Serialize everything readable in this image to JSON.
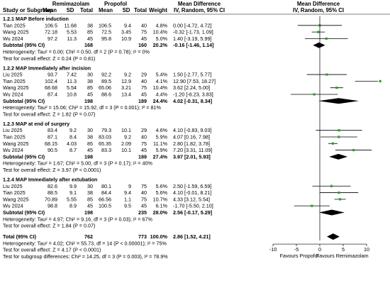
{
  "header": {
    "study_col": "Study or Subgroup",
    "group1": "Remimazolam",
    "group2": "Propofol",
    "mean": "Mean",
    "sd": "SD",
    "total": "Total",
    "weight": "Weight",
    "md_col": "Mean Difference",
    "md_method": "IV, Random, 95% CI",
    "plot_col": "Mean Difference",
    "plot_method": "IV, Random, 95% CI"
  },
  "chart_data": {
    "type": "forest",
    "x_ticks": [
      "-10",
      "-5",
      "0",
      "5",
      "10"
    ],
    "xlim": [
      -12.5,
      12.5
    ],
    "favours_left": "Favours Propofol",
    "favours_right": "Favours Remimazolam",
    "colors": {
      "point": "#2e9e2e",
      "line": "#000000",
      "diamond": "#000000"
    },
    "subgroups": [
      {
        "title": "1.2.1 MAP Before induction",
        "studies": [
          {
            "study": "Tian 2025",
            "m1": "106.5",
            "sd1": "11.68",
            "n1": "38",
            "m2": "106.5",
            "sd2": "9.4",
            "n2": "40",
            "weight": "4.8%",
            "ci_text": "0.00 [-4.72, 4.72]",
            "md": 0.0,
            "lo": -4.72,
            "hi": 4.72
          },
          {
            "study": "Wang 2025",
            "m1": "72.18",
            "sd1": "5.53",
            "n1": "85",
            "m2": "72.5",
            "sd2": "3.45",
            "n2": "75",
            "weight": "10.4%",
            "ci_text": "-0.32 [-1.73, 1.09]",
            "md": -0.32,
            "lo": -1.73,
            "hi": 1.09
          },
          {
            "study": "Wu 2024",
            "m1": "97.2",
            "sd1": "11.3",
            "n1": "45",
            "m2": "95.8",
            "sd2": "10.9",
            "n2": "45",
            "weight": "5.0%",
            "ci_text": "1.40 [-3.19, 5.99]",
            "md": 1.4,
            "lo": -3.19,
            "hi": 5.99
          }
        ],
        "subtotal": {
          "label": "Subtotal (95% CI)",
          "n1": "168",
          "n2": "160",
          "weight": "20.2%",
          "ci_text": "-0.16 [-1.46, 1.14]",
          "md": -0.16,
          "lo": -1.46,
          "hi": 1.14
        },
        "heterogeneity": "Heterogeneity: Tau² = 0.00; Chi² = 0.50, df = 2 (P = 0.78); I² = 0%",
        "overall": "Test for overall effect: Z = 0.24 (P = 0.81)"
      },
      {
        "title": "1.2.2 MAP Immediately after incision",
        "studies": [
          {
            "study": "Liu 2025",
            "m1": "93.7",
            "sd1": "7.42",
            "n1": "30",
            "m2": "92.2",
            "sd2": "9.2",
            "n2": "29",
            "weight": "5.4%",
            "ci_text": "1.50 [-2.77, 5.77]",
            "md": 1.5,
            "lo": -2.77,
            "hi": 5.77
          },
          {
            "study": "Tian 2025",
            "m1": "102.4",
            "sd1": "11.3",
            "n1": "38",
            "m2": "89.5",
            "sd2": "12.9",
            "n2": "40",
            "weight": "4.1%",
            "ci_text": "12.90 [7.53, 18.27]",
            "md": 12.9,
            "lo": 7.53,
            "hi": 18.27
          },
          {
            "study": "Wang 2025",
            "m1": "68.68",
            "sd1": "5.54",
            "n1": "85",
            "m2": "65.06",
            "sd2": "3.21",
            "n2": "75",
            "weight": "10.4%",
            "ci_text": "3.62 [2.24, 5.00]",
            "md": 3.62,
            "lo": 2.24,
            "hi": 5.0
          },
          {
            "study": "Wu 2024",
            "m1": "87.4",
            "sd1": "10.8",
            "n1": "45",
            "m2": "88.6",
            "sd2": "13.4",
            "n2": "45",
            "weight": "4.4%",
            "ci_text": "-1.20 [-6.23, 3.83]",
            "md": -1.2,
            "lo": -6.23,
            "hi": 3.83
          }
        ],
        "subtotal": {
          "label": "Subtotal (95% CI)",
          "n1": "198",
          "n2": "189",
          "weight": "24.4%",
          "ci_text": "4.02 [-0.31, 8.34]",
          "md": 4.02,
          "lo": -0.31,
          "hi": 8.34
        },
        "heterogeneity": "Heterogeneity: Tau² = 15.06; Chi² = 15.92, df = 3 (P = 0.001); I² = 81%",
        "overall": "Test for overall effect: Z = 1.82 (P = 0.07)"
      },
      {
        "title": "1.2.3 MAP at end of surgery",
        "studies": [
          {
            "study": "Liu 2025",
            "m1": "83.4",
            "sd1": "9.2",
            "n1": "30",
            "m2": "79.3",
            "sd2": "10.1",
            "n2": "29",
            "weight": "4.6%",
            "ci_text": "4.10 [-0.83, 9.03]",
            "md": 4.1,
            "lo": -0.83,
            "hi": 9.03
          },
          {
            "study": "Tian 2025",
            "m1": "87.1",
            "sd1": "8.4",
            "n1": "38",
            "m2": "83.03",
            "sd2": "9.2",
            "n2": "40",
            "weight": "5.9%",
            "ci_text": "4.07 [0.16, 7.98]",
            "md": 4.07,
            "lo": 0.16,
            "hi": 7.98
          },
          {
            "study": "Wang 2025",
            "m1": "68.15",
            "sd1": "4.03",
            "n1": "85",
            "m2": "65.35",
            "sd2": "2.09",
            "n2": "75",
            "weight": "11.1%",
            "ci_text": "2.80 [1.82, 3.78]",
            "md": 2.8,
            "lo": 1.82,
            "hi": 3.78
          },
          {
            "study": "Wu 2024",
            "m1": "90.5",
            "sd1": "8.7",
            "n1": "45",
            "m2": "83.3",
            "sd2": "10.1",
            "n2": "45",
            "weight": "5.9%",
            "ci_text": "7.20 [3.31, 11.09]",
            "md": 7.2,
            "lo": 3.31,
            "hi": 11.09
          }
        ],
        "subtotal": {
          "label": "Subtotal (95% CI)",
          "n1": "198",
          "n2": "189",
          "weight": "27.4%",
          "ci_text": "3.97 [2.01, 5.93]",
          "md": 3.97,
          "lo": 2.01,
          "hi": 5.93
        },
        "heterogeneity": "Heterogeneity: Tau² = 1.67; Chi² = 5.00, df = 3 (P = 0.17); I² = 40%",
        "overall": "Test for overall effect: Z = 3.97 (P < 0.0001)"
      },
      {
        "title": "1.2.4 MAP Immediately after extubation",
        "studies": [
          {
            "study": "Liu 2025",
            "m1": "82.6",
            "sd1": "9.9",
            "n1": "30",
            "m2": "80.1",
            "sd2": "9",
            "n2": "75",
            "weight": "5.6%",
            "ci_text": "2.50 [-1.59, 6.59]",
            "md": 2.5,
            "lo": -1.59,
            "hi": 6.59
          },
          {
            "study": "Tian 2025",
            "m1": "88.5",
            "sd1": "9.1",
            "n1": "38",
            "m2": "84.4",
            "sd2": "9.4",
            "n2": "40",
            "weight": "5.6%",
            "ci_text": "4.10 [-0.01, 8.21]",
            "md": 4.1,
            "lo": -0.01,
            "hi": 8.21
          },
          {
            "study": "Wang 2025",
            "m1": "70.89",
            "sd1": "5.55",
            "n1": "85",
            "m2": "66.56",
            "sd2": "1.1",
            "n2": "75",
            "weight": "10.7%",
            "ci_text": "4.33 [3.12, 5.54]",
            "md": 4.33,
            "lo": 3.12,
            "hi": 5.54
          },
          {
            "study": "Wu 2024",
            "m1": "98.8",
            "sd1": "8.9",
            "n1": "45",
            "m2": "100.5",
            "sd2": "9.5",
            "n2": "45",
            "weight": "6.1%",
            "ci_text": "-1.70 [-5.50, 2.10]",
            "md": -1.7,
            "lo": -5.5,
            "hi": 2.1
          }
        ],
        "subtotal": {
          "label": "Subtotal (95% CI)",
          "n1": "198",
          "n2": "235",
          "weight": "28.0%",
          "ci_text": "2.56 [-0.17, 5.29]",
          "md": 2.56,
          "lo": -0.17,
          "hi": 5.29
        },
        "heterogeneity": "Heterogeneity: Tau² = 4.97; Chi² = 9.16, df = 3 (P = 0.03); I² = 67%",
        "overall": "Test for overall effect: Z = 1.84 (P = 0.07)"
      }
    ],
    "total": {
      "label": "Total (95% CI)",
      "n1": "762",
      "n2": "773",
      "weight": "100.0%",
      "ci_text": "2.86 [1.52, 4.21]",
      "md": 2.86,
      "lo": 1.52,
      "hi": 4.21
    },
    "footer": [
      "Heterogeneity: Tau² = 4.02; Chi² = 55.73, df = 14 (P < 0.00001); I² = 75%",
      "Test for overall effect: Z = 4.17 (P < 0.0001)",
      "Test for subgroup differences: Chi² = 14.25, df = 3 (P = 0.003), I² = 78.9%"
    ]
  }
}
